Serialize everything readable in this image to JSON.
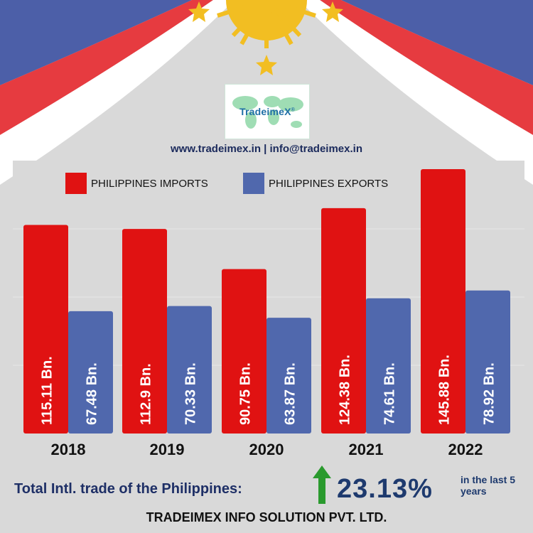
{
  "logo": {
    "text": "TradeimeX",
    "mark": "®"
  },
  "contact": "www.tradeimex.in | info@tradeimex.in",
  "colors": {
    "imports": "#e01212",
    "exports": "#5068ad",
    "flag_red": "#e63b40",
    "flag_blue": "#4c5fa8",
    "sun": "#f2be22",
    "arrow": "#2a9a2e"
  },
  "legend": {
    "imports": "PHILIPPINES IMPORTS",
    "exports": "PHILIPPINES EXPORTS"
  },
  "chart_data": {
    "type": "bar",
    "categories": [
      "2018",
      "2019",
      "2020",
      "2021",
      "2022"
    ],
    "series": [
      {
        "name": "PHILIPPINES IMPORTS",
        "values": [
          115.11,
          112.9,
          90.75,
          124.38,
          145.88
        ],
        "labels": [
          "115.11 Bn.",
          "112.9 Bn.",
          "90.75 Bn.",
          "124.38 Bn.",
          "145.88 Bn."
        ]
      },
      {
        "name": "PHILIPPINES EXPORTS",
        "values": [
          67.48,
          70.33,
          63.87,
          74.61,
          78.92
        ],
        "labels": [
          "67.48 Bn.",
          "70.33 Bn.",
          "63.87 Bn.",
          "74.61 Bn.",
          "78.92 Bn."
        ]
      }
    ],
    "ylim": [
      0,
      160
    ],
    "grid": true,
    "legend_position": "top"
  },
  "footer": {
    "total_label": "Total Intl. trade of the Philippines:",
    "growth": "23.13%",
    "growth_note": "in the last 5 years",
    "company": "TRADEIMEX INFO SOLUTION PVT. LTD."
  }
}
